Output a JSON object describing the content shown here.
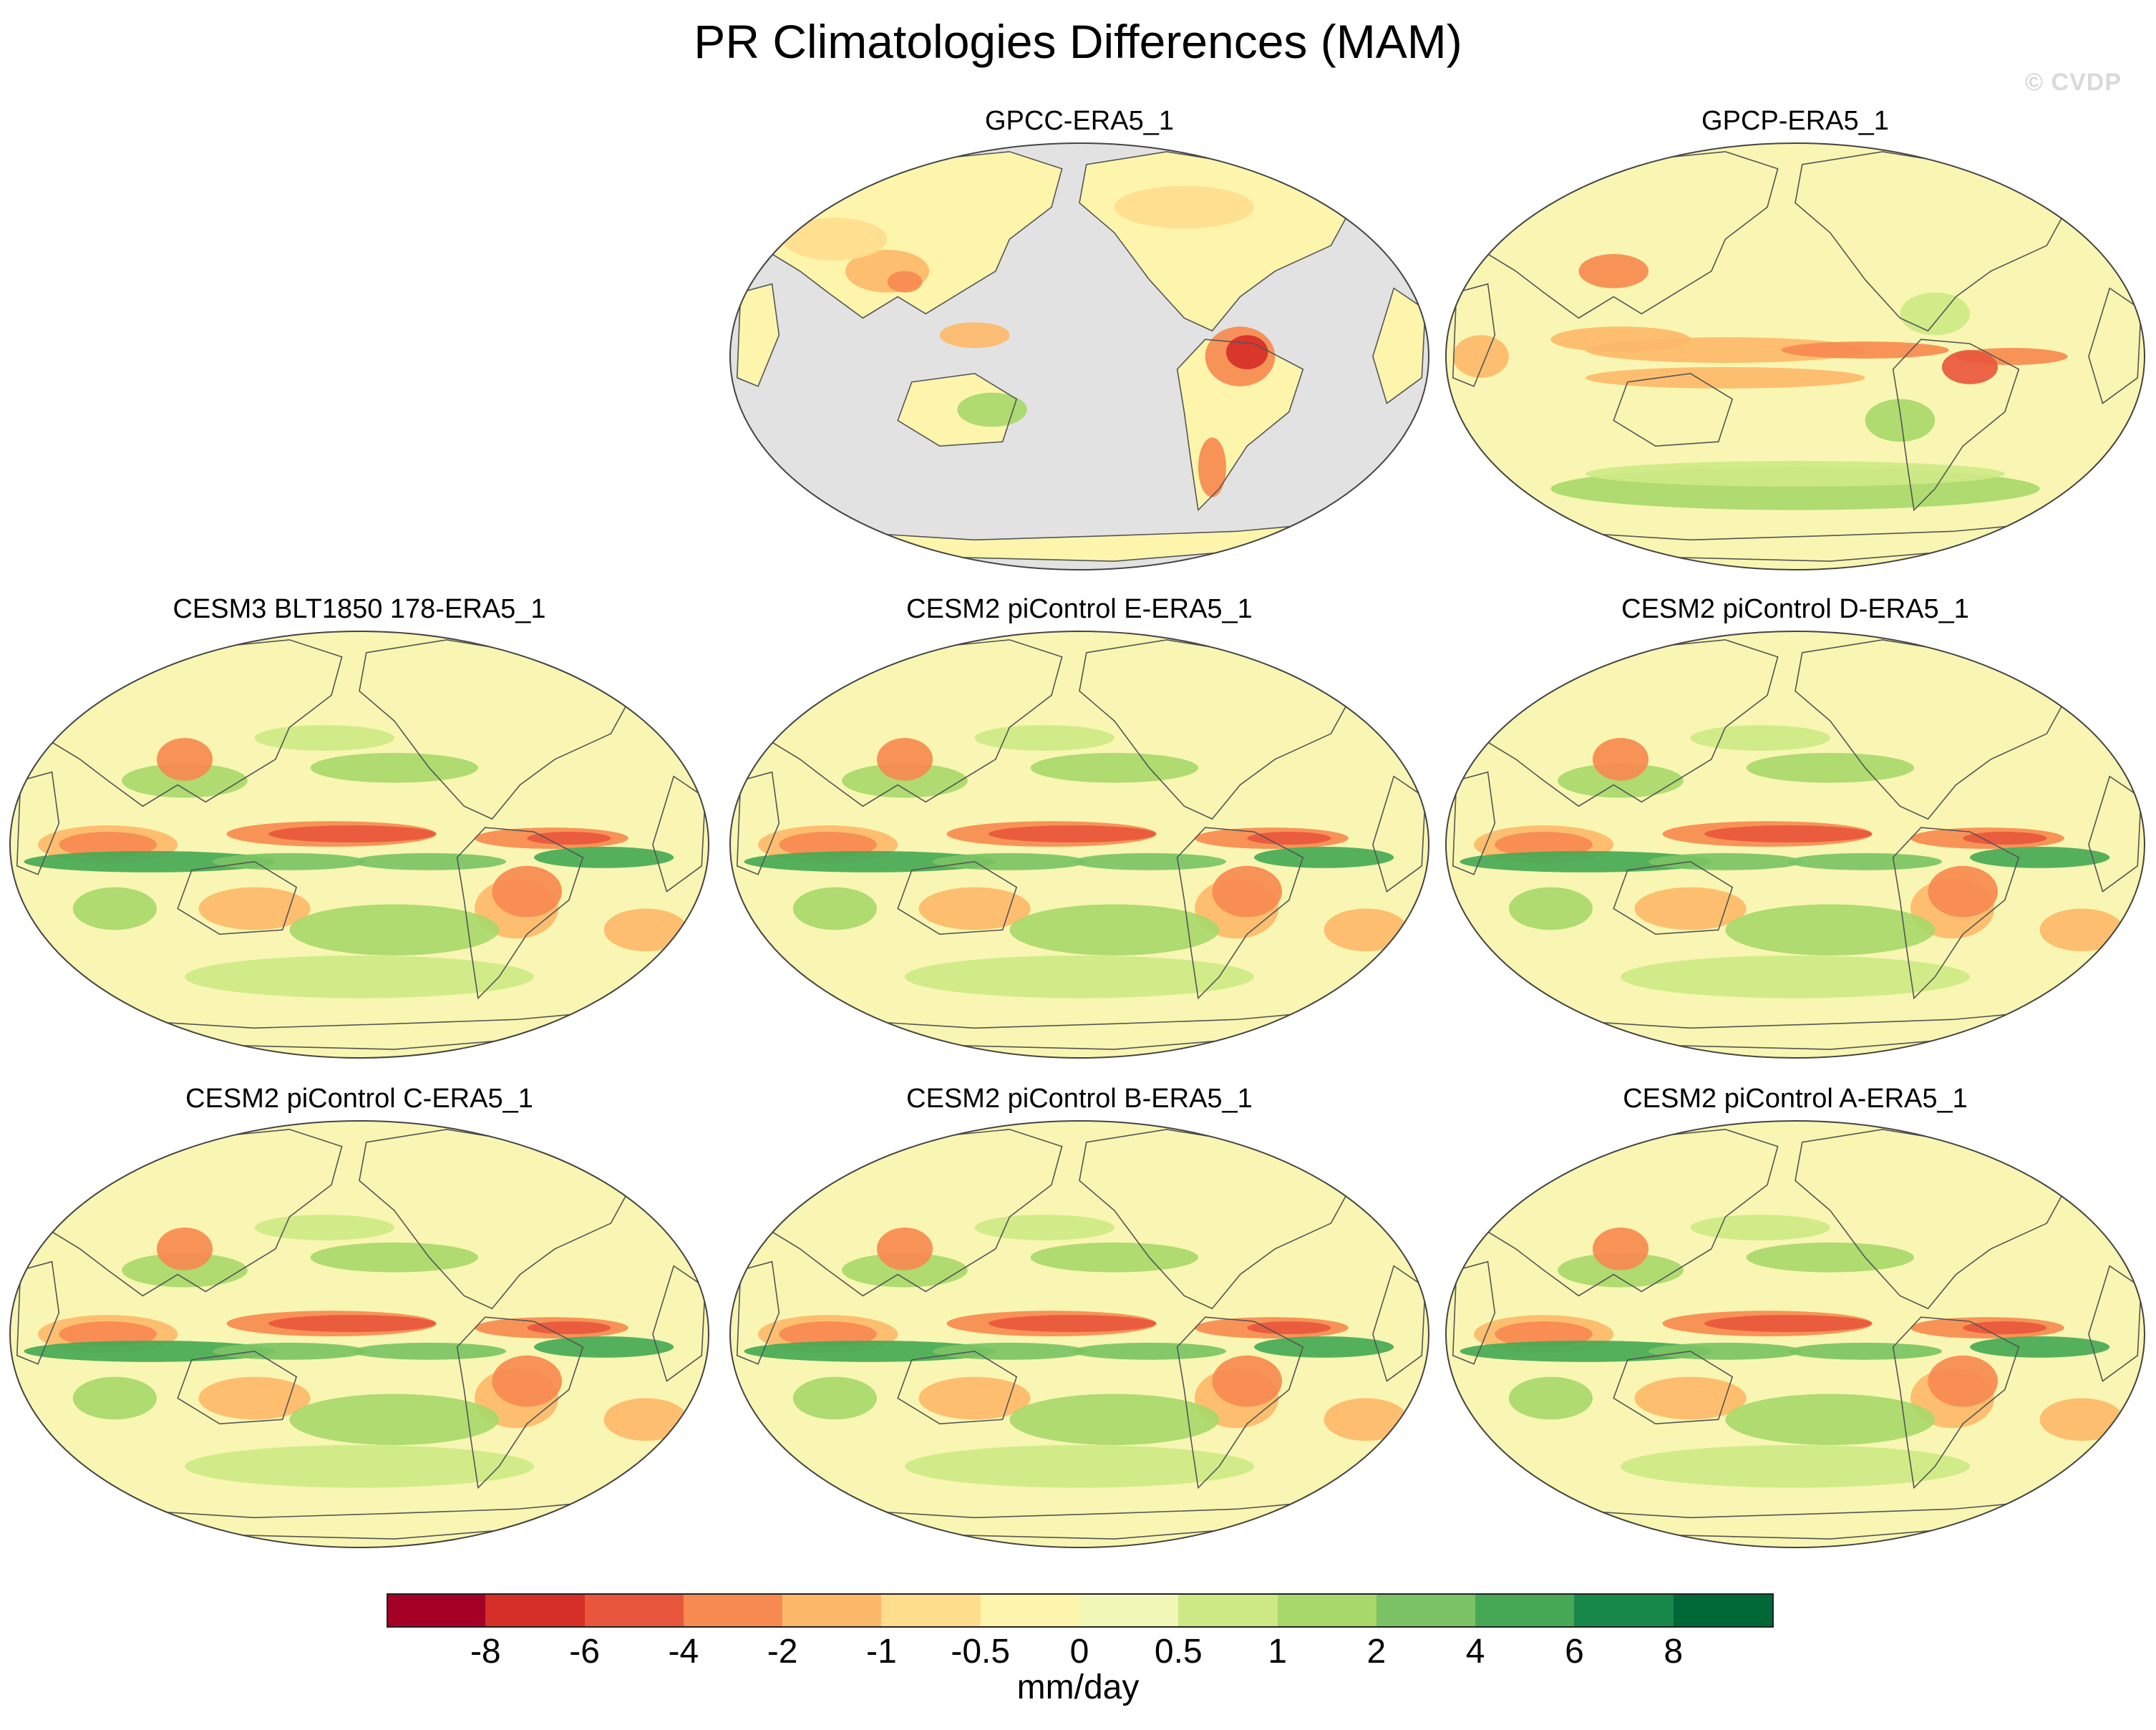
{
  "figure": {
    "title": "PR Climatologies Differences (MAM)",
    "watermark": "© CVDP"
  },
  "panels": [
    {
      "title": "GPCC-ERA5_1",
      "style": "land"
    },
    {
      "title": "GPCP-ERA5_1",
      "style": "obs"
    },
    {
      "title": "CESM3 BLT1850 178-ERA5_1",
      "style": "model"
    },
    {
      "title": "CESM2 piControl E-ERA5_1",
      "style": "model"
    },
    {
      "title": "CESM2 piControl D-ERA5_1",
      "style": "model"
    },
    {
      "title": "CESM2 piControl C-ERA5_1",
      "style": "model"
    },
    {
      "title": "CESM2 piControl B-ERA5_1",
      "style": "model"
    },
    {
      "title": "CESM2 piControl A-ERA5_1",
      "style": "model"
    }
  ],
  "colorbar": {
    "units": "mm/day",
    "colors": [
      "#a50026",
      "#d62f27",
      "#e8573c",
      "#f78a50",
      "#fdb96a",
      "#fedd8d",
      "#fef5ad",
      "#f1f8b7",
      "#cde986",
      "#a8d86a",
      "#7bc364",
      "#47a955",
      "#18874a",
      "#006837"
    ],
    "tick_labels": [
      "-8",
      "-6",
      "-4",
      "-2",
      "-1",
      "-0.5",
      "0",
      "0.5",
      "1",
      "2",
      "4",
      "6",
      "8"
    ]
  }
}
